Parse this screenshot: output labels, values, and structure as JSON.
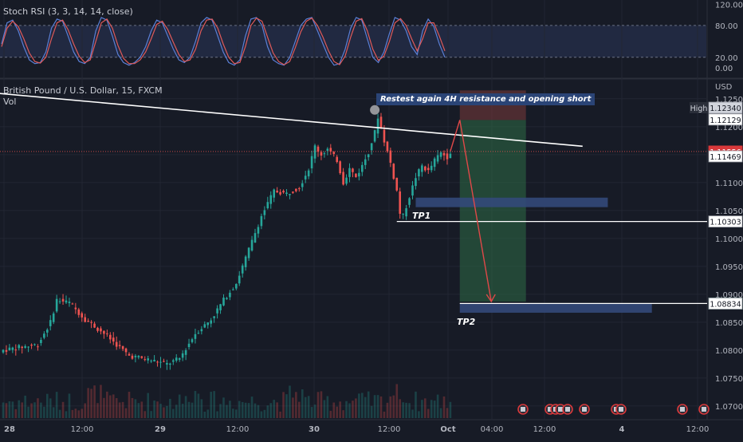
{
  "indicator_label": "Stoch RSI (3, 3, 14, 14, close)",
  "symbol_label": "British Pound / U.S. Dollar, 15, FXCM",
  "volume_label": "Vol",
  "currency": "USD",
  "annotations": {
    "callout": "Restest again 4H resistance and opening short",
    "tp1": "TP1",
    "tp2": "TP2"
  },
  "colors": {
    "background": "#171b26",
    "up_candle": "#26a69a",
    "down_candle": "#ef5350",
    "stoch_k": "#5b7fd6",
    "stoch_d": "#e05a5a",
    "trendline": "#ffffff",
    "target_zone": "#33497a",
    "reward_zone": "#2e6b45",
    "risk_zone": "#7a3a3a",
    "projection_arrow": "#e04848"
  },
  "chart_data": [
    {
      "type": "line",
      "name": "Stoch RSI",
      "ylim": [
        -18,
        128
      ],
      "yticks": [
        "120.00",
        "80.00",
        "20.00",
        "0.00"
      ],
      "ytick_values": [
        120,
        80,
        20,
        0
      ],
      "bands": [
        80,
        20
      ],
      "series": [
        {
          "name": "K",
          "values": [
            45,
            85,
            90,
            70,
            40,
            15,
            8,
            10,
            30,
            75,
            92,
            88,
            60,
            30,
            12,
            8,
            20,
            70,
            95,
            90,
            60,
            25,
            10,
            5,
            10,
            20,
            40,
            70,
            90,
            85,
            60,
            35,
            15,
            10,
            20,
            50,
            85,
            95,
            90,
            60,
            30,
            10,
            5,
            15,
            60,
            92,
            95,
            80,
            40,
            15,
            8,
            5,
            20,
            50,
            80,
            92,
            95,
            70,
            45,
            20,
            5,
            8,
            35,
            75,
            95,
            90,
            55,
            20,
            10,
            30,
            65,
            95,
            90,
            70,
            40,
            25,
            70,
            92,
            78,
            45,
            20
          ]
        },
        {
          "name": "D",
          "values": [
            40,
            75,
            88,
            78,
            55,
            28,
            12,
            9,
            20,
            55,
            85,
            90,
            72,
            45,
            22,
            10,
            15,
            50,
            85,
            92,
            75,
            42,
            18,
            8,
            8,
            15,
            30,
            55,
            82,
            88,
            72,
            48,
            25,
            12,
            15,
            35,
            70,
            90,
            92,
            75,
            45,
            20,
            8,
            10,
            40,
            80,
            94,
            88,
            58,
            28,
            12,
            6,
            12,
            38,
            68,
            88,
            94,
            80,
            58,
            32,
            12,
            6,
            22,
            58,
            88,
            93,
            70,
            35,
            14,
            22,
            50,
            85,
            93,
            80,
            55,
            32,
            55,
            85,
            85,
            60,
            32
          ]
        }
      ]
    },
    {
      "type": "candlestick",
      "name": "British Pound / U.S. Dollar, 15, FXCM",
      "ylim": [
        1.0677,
        1.1284
      ],
      "yticks": [
        "1.12500",
        "1.12000",
        "1.11500",
        "1.11000",
        "1.10500",
        "1.10000",
        "1.09500",
        "1.09000",
        "1.08500",
        "1.08000",
        "1.07500",
        "1.07000"
      ],
      "ytick_values": [
        1.125,
        1.12,
        1.115,
        1.11,
        1.105,
        1.1,
        1.095,
        1.09,
        1.085,
        1.08,
        1.075,
        1.07
      ],
      "xticks": [
        "28",
        "12:00",
        "29",
        "12:00",
        "30",
        "12:00",
        "Oct",
        "04:00",
        "12:00",
        "4",
        "12:00"
      ],
      "anchors": [
        [
          0,
          1.08
        ],
        [
          5,
          1.0805
        ],
        [
          11,
          1.081
        ],
        [
          15,
          1.085
        ],
        [
          17,
          1.089
        ],
        [
          21,
          1.0885
        ],
        [
          26,
          1.0855
        ],
        [
          32,
          1.083
        ],
        [
          40,
          1.079
        ],
        [
          47,
          1.0782
        ],
        [
          52,
          1.0775
        ],
        [
          56,
          1.0785
        ],
        [
          61,
          1.083
        ],
        [
          66,
          1.0855
        ],
        [
          70,
          1.089
        ],
        [
          74,
          1.092
        ],
        [
          78,
          1.098
        ],
        [
          82,
          1.104
        ],
        [
          86,
          1.1085
        ],
        [
          90,
          1.108
        ],
        [
          94,
          1.1092
        ],
        [
          97,
          1.1125
        ],
        [
          99,
          1.1165
        ],
        [
          101,
          1.115
        ],
        [
          103,
          1.116
        ],
        [
          106,
          1.114
        ],
        [
          108,
          1.11
        ],
        [
          110,
          1.1125
        ],
        [
          112,
          1.111
        ],
        [
          114,
          1.113
        ],
        [
          116,
          1.1155
        ],
        [
          118,
          1.119
        ],
        [
          119,
          1.1218
        ],
        [
          121,
          1.1175
        ],
        [
          123,
          1.1135
        ],
        [
          125,
          1.1085
        ],
        [
          126,
          1.1045
        ],
        [
          127,
          1.104
        ],
        [
          129,
          1.1075
        ],
        [
          131,
          1.111
        ],
        [
          133,
          1.113
        ],
        [
          135,
          1.112
        ],
        [
          137,
          1.114
        ],
        [
          139,
          1.1153
        ],
        [
          141,
          1.1146
        ],
        [
          142,
          1.1156
        ]
      ],
      "levels": [
        {
          "label": "High",
          "value": 1.1234
        },
        {
          "value": 1.12129
        },
        {
          "value": 1.11556,
          "kind": "last"
        },
        {
          "value": 1.11469
        },
        {
          "value": 1.10303
        },
        {
          "value": 1.08836,
          "kind": "target"
        },
        {
          "value": 1.08834
        }
      ],
      "trendline": [
        [
          -2,
          1.126
        ],
        [
          184,
          1.1165
        ]
      ],
      "projection": [
        [
          145,
          1.1212
        ],
        [
          155,
          1.0887
        ]
      ],
      "tp1_zone": {
        "x": [
          131,
          192
        ],
        "y": [
          1.1056,
          1.1073
        ]
      },
      "tp2_zone": {
        "x": [
          145,
          206
        ],
        "y": [
          1.0867,
          1.0884
        ]
      },
      "risk_box": {
        "x": [
          145,
          166
        ],
        "y": [
          1.1212,
          1.1265
        ]
      },
      "reward_box": {
        "x": [
          145,
          166
        ],
        "y": [
          1.0887,
          1.1212
        ]
      },
      "tp1_line": {
        "x": [
          125,
          226
        ],
        "value": 1.10303
      },
      "tp2_line": {
        "x": [
          145,
          226
        ],
        "value": 1.08836
      },
      "swing_high_marker": [
        118,
        1.123
      ]
    }
  ]
}
